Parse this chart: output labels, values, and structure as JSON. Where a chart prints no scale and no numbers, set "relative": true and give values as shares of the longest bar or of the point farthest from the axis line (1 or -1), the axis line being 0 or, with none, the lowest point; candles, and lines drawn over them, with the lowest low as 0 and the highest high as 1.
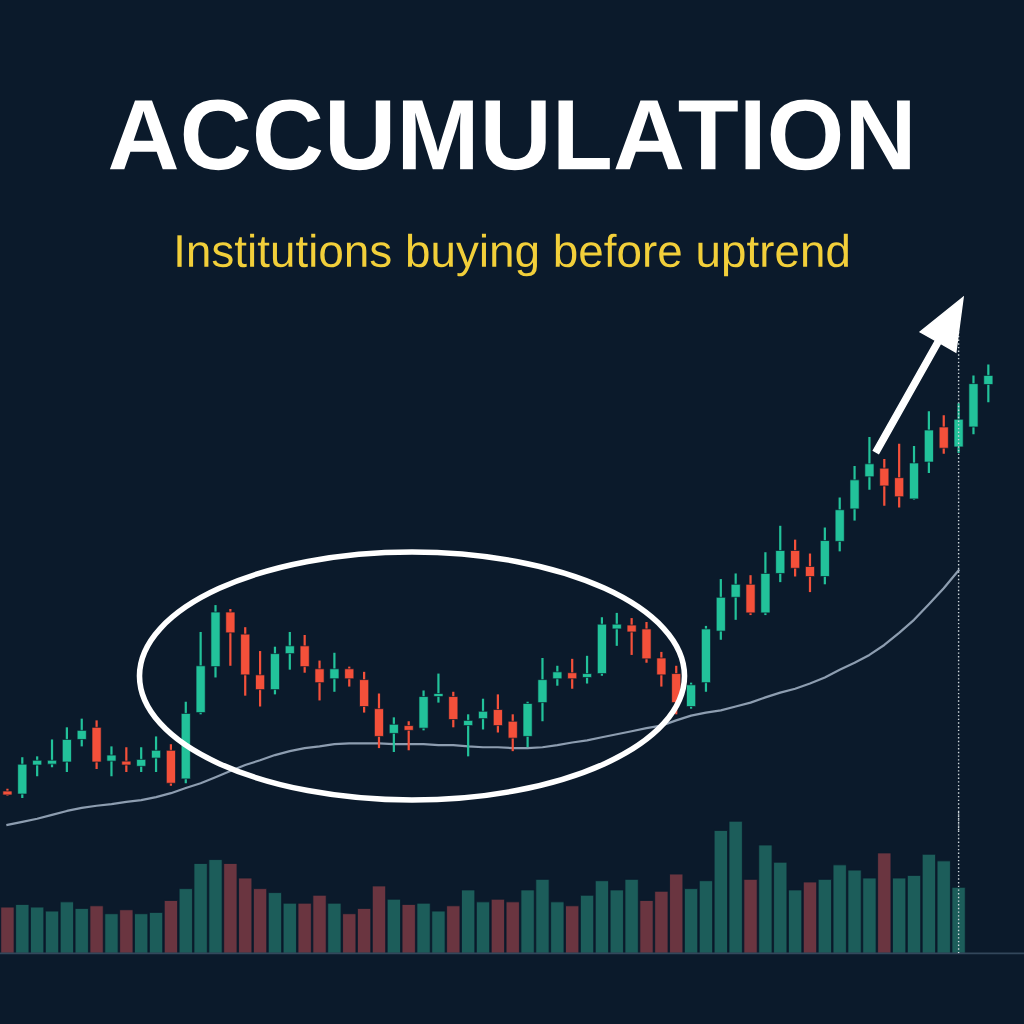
{
  "chart_data": [
    {
      "type": "candlestick",
      "title": "ACCUMULATION",
      "subtitle": "Institutions buying before uptrend",
      "relative": true,
      "categories": [
        null,
        null,
        null,
        null,
        null,
        null,
        null,
        null,
        null,
        null,
        null,
        null,
        null,
        null,
        null,
        null,
        null,
        null,
        null,
        null,
        null,
        null,
        null,
        null,
        null,
        null,
        null,
        null,
        null,
        null,
        null,
        null,
        null,
        null,
        null,
        null,
        null,
        null,
        null,
        null,
        null,
        null,
        null,
        null,
        null,
        null,
        null,
        null,
        null,
        null,
        null,
        null,
        null,
        null,
        null,
        null,
        null,
        null,
        null,
        null,
        null,
        null,
        null,
        null,
        null,
        null,
        null
      ],
      "ohlc": [
        [
          0.016,
          0.021,
          0.005,
          0.007
        ],
        [
          0.009,
          0.094,
          0,
          0.078
        ],
        [
          0.076,
          0.096,
          0.05,
          0.087
        ],
        [
          0.078,
          0.135,
          0.071,
          0.087
        ],
        [
          0.083,
          0.163,
          0.06,
          0.135
        ],
        [
          0.135,
          0.183,
          0.119,
          0.156
        ],
        [
          0.163,
          0.179,
          0.067,
          0.083
        ],
        [
          0.085,
          0.119,
          0.05,
          0.099
        ],
        [
          0.085,
          0.117,
          0.06,
          0.076
        ],
        [
          0.073,
          0.117,
          0.06,
          0.089
        ],
        [
          0.092,
          0.142,
          0.06,
          0.11
        ],
        [
          0.11,
          0.124,
          0.028,
          0.034
        ],
        [
          0.044,
          0.222,
          0.034,
          0.195
        ],
        [
          0.197,
          0.383,
          0.193,
          0.305
        ],
        [
          0.303,
          0.445,
          0.278,
          0.429
        ],
        [
          0.429,
          0.436,
          0.305,
          0.381
        ],
        [
          0.378,
          0.394,
          0.236,
          0.284
        ],
        [
          0.284,
          0.339,
          0.211,
          0.25
        ],
        [
          0.25,
          0.349,
          0.239,
          0.333
        ],
        [
          0.333,
          0.383,
          0.296,
          0.351
        ],
        [
          0.351,
          0.376,
          0.289,
          0.303
        ],
        [
          0.298,
          0.317,
          0.225,
          0.266
        ],
        [
          0.275,
          0.335,
          0.245,
          0.298
        ],
        [
          0.298,
          0.303,
          0.257,
          0.275
        ],
        [
          0.273,
          0.291,
          0.197,
          0.211
        ],
        [
          0.206,
          0.241,
          0.115,
          0.142
        ],
        [
          0.149,
          0.186,
          0.106,
          0.17
        ],
        [
          0.167,
          0.177,
          0.11,
          0.156
        ],
        [
          0.161,
          0.248,
          0.156,
          0.234
        ],
        [
          0.234,
          0.287,
          0.22,
          0.241
        ],
        [
          0.234,
          0.245,
          0.163,
          0.181
        ],
        [
          0.167,
          0.193,
          0.096,
          0.179
        ],
        [
          0.183,
          0.229,
          0.158,
          0.2
        ],
        [
          0.204,
          0.239,
          0.151,
          0.167
        ],
        [
          0.177,
          0.193,
          0.108,
          0.138
        ],
        [
          0.142,
          0.222,
          0.117,
          0.218
        ],
        [
          0.22,
          0.323,
          0.177,
          0.273
        ],
        [
          0.275,
          0.305,
          0.259,
          0.291
        ],
        [
          0.289,
          0.321,
          0.252,
          0.275
        ],
        [
          0.278,
          0.328,
          0.264,
          0.287
        ],
        [
          0.287,
          0.417,
          0.282,
          0.401
        ],
        [
          0.39,
          0.427,
          0.351,
          0.401
        ],
        [
          0.399,
          0.415,
          0.33,
          0.383
        ],
        [
          0.39,
          0.406,
          0.312,
          0.321
        ],
        [
          0.323,
          0.337,
          0.257,
          0.284
        ],
        [
          0.287,
          0.305,
          0.193,
          0.22
        ],
        [
          0.211,
          0.266,
          0.206,
          0.261
        ],
        [
          0.266,
          0.397,
          0.245,
          0.39
        ],
        [
          0.385,
          0.505,
          0.365,
          0.463
        ],
        [
          0.463,
          0.518,
          0.411,
          0.493
        ],
        [
          0.493,
          0.514,
          0.422,
          0.427
        ],
        [
          0.427,
          0.567,
          0.422,
          0.518
        ],
        [
          0.518,
          0.628,
          0.498,
          0.571
        ],
        [
          0.571,
          0.596,
          0.511,
          0.53
        ],
        [
          0.534,
          0.564,
          0.475,
          0.511
        ],
        [
          0.511,
          0.624,
          0.493,
          0.594
        ],
        [
          0.592,
          0.693,
          0.569,
          0.665
        ],
        [
          0.667,
          0.766,
          0.64,
          0.734
        ],
        [
          0.741,
          0.833,
          0.711,
          0.771
        ],
        [
          0.761,
          0.782,
          0.674,
          0.72
        ],
        [
          0.739,
          0.817,
          0.67,
          0.695
        ],
        [
          0.69,
          0.812,
          0.688,
          0.773
        ],
        [
          0.775,
          0.892,
          0.75,
          0.849
        ],
        [
          0.856,
          0.883,
          0.794,
          0.807
        ],
        [
          0.81,
          0.911,
          0.796,
          0.874
        ],
        [
          0.856,
          0.975,
          0.839,
          0.956
        ],
        [
          0.954,
          1,
          0.913,
          0.975
        ]
      ],
      "colors": [
        "#f4503a",
        "#22c29a",
        "#22c29a",
        "#22c29a",
        "#22c29a",
        "#22c29a",
        "#f4503a",
        "#22c29a",
        "#f4503a",
        "#22c29a",
        "#22c29a",
        "#f4503a",
        "#22c29a",
        "#22c29a",
        "#22c29a",
        "#f4503a",
        "#f4503a",
        "#f4503a",
        "#22c29a",
        "#22c29a",
        "#f4503a",
        "#f4503a",
        "#22c29a",
        "#f4503a",
        "#f4503a",
        "#f4503a",
        "#22c29a",
        "#f4503a",
        "#22c29a",
        "#22c29a",
        "#f4503a",
        "#22c29a",
        "#22c29a",
        "#f4503a",
        "#f4503a",
        "#22c29a",
        "#22c29a",
        "#22c29a",
        "#f4503a",
        "#22c29a",
        "#22c29a",
        "#22c29a",
        "#f4503a",
        "#f4503a",
        "#f4503a",
        "#f4503a",
        "#22c29a",
        "#22c29a",
        "#22c29a",
        "#22c29a",
        "#f4503a",
        "#22c29a",
        "#22c29a",
        "#f4503a",
        "#f4503a",
        "#22c29a",
        "#22c29a",
        "#22c29a",
        "#22c29a",
        "#f4503a",
        "#f4503a",
        "#22c29a",
        "#22c29a",
        "#f4503a",
        "#22c29a",
        "#22c29a",
        "#22c29a"
      ],
      "series": [
        {
          "type": "line",
          "color": "#8d9db0",
          "line_style": "solid",
          "values": [
            -0.062,
            -0.055,
            -0.048,
            -0.039,
            -0.03,
            -0.023,
            -0.018,
            -0.014,
            -0.009,
            -0.005,
            0.002,
            0.011,
            0.023,
            0.034,
            0.048,
            0.062,
            0.076,
            0.087,
            0.099,
            0.108,
            0.115,
            0.119,
            0.124,
            0.126,
            0.126,
            0.126,
            0.124,
            0.124,
            0.124,
            0.122,
            0.122,
            0.119,
            0.117,
            0.117,
            0.115,
            0.115,
            0.117,
            0.122,
            0.128,
            0.133,
            0.14,
            0.147,
            0.154,
            0.161,
            0.167,
            0.179,
            0.19,
            0.197,
            0.202,
            0.211,
            0.22,
            0.232,
            0.243,
            0.252,
            0.264,
            0.278,
            0.296,
            0.312,
            0.33,
            0.353,
            0.381,
            0.411,
            0.447,
            0.484,
            0.525,
            null,
            null
          ]
        }
      ]
    },
    {
      "type": "bar",
      "relative": true,
      "categories": [
        null,
        null,
        null,
        null,
        null,
        null,
        null,
        null,
        null,
        null,
        null,
        null,
        null,
        null,
        null,
        null,
        null,
        null,
        null,
        null,
        null,
        null,
        null,
        null,
        null,
        null,
        null,
        null,
        null,
        null,
        null,
        null,
        null,
        null,
        null,
        null,
        null,
        null,
        null,
        null,
        null,
        null,
        null,
        null,
        null,
        null,
        null,
        null,
        null,
        null,
        null,
        null,
        null,
        null,
        null,
        null,
        null,
        null,
        null,
        null,
        null,
        null,
        null,
        null,
        null
      ],
      "values": [
        0.35,
        0.37,
        0.35,
        0.32,
        0.39,
        0.34,
        0.36,
        0.3,
        0.33,
        0.3,
        0.31,
        0.4,
        0.49,
        0.68,
        0.71,
        0.68,
        0.57,
        0.49,
        0.46,
        0.38,
        0.38,
        0.44,
        0.38,
        0.3,
        0.34,
        0.51,
        0.41,
        0.37,
        0.38,
        0.32,
        0.36,
        0.48,
        0.39,
        0.41,
        0.39,
        0.48,
        0.56,
        0.39,
        0.36,
        0.44,
        0.55,
        0.48,
        0.56,
        0.4,
        0.47,
        0.6,
        0.49,
        0.55,
        0.93,
        1,
        0.56,
        0.82,
        0.69,
        0.48,
        0.54,
        0.56,
        0.67,
        0.63,
        0.57,
        0.76,
        0.57,
        0.59,
        0.75,
        0.7,
        0.5
      ],
      "colors": [
        "#6a3540",
        "#1c5d5a",
        "#1c5d5a",
        "#1c5d5a",
        "#1c5d5a",
        "#1c5d5a",
        "#6a3540",
        "#1c5d5a",
        "#6a3540",
        "#1c5d5a",
        "#1c5d5a",
        "#6a3540",
        "#1c5d5a",
        "#1c5d5a",
        "#1c5d5a",
        "#6a3540",
        "#6a3540",
        "#6a3540",
        "#1c5d5a",
        "#1c5d5a",
        "#6a3540",
        "#6a3540",
        "#1c5d5a",
        "#6a3540",
        "#6a3540",
        "#6a3540",
        "#1c5d5a",
        "#6a3540",
        "#1c5d5a",
        "#1c5d5a",
        "#6a3540",
        "#1c5d5a",
        "#1c5d5a",
        "#6a3540",
        "#6a3540",
        "#1c5d5a",
        "#1c5d5a",
        "#1c5d5a",
        "#6a3540",
        "#1c5d5a",
        "#1c5d5a",
        "#1c5d5a",
        "#1c5d5a",
        "#6a3540",
        "#6a3540",
        "#6a3540",
        "#1c5d5a",
        "#1c5d5a",
        "#1c5d5a",
        "#1c5d5a",
        "#6a3540",
        "#1c5d5a",
        "#1c5d5a",
        "#1c5d5a",
        "#6a3540",
        "#1c5d5a",
        "#1c5d5a",
        "#1c5d5a",
        "#1c5d5a",
        "#6a3540",
        "#1c5d5a",
        "#1c5d5a",
        "#1c5d5a",
        "#1c5d5a",
        "#1c5d5a"
      ]
    }
  ]
}
